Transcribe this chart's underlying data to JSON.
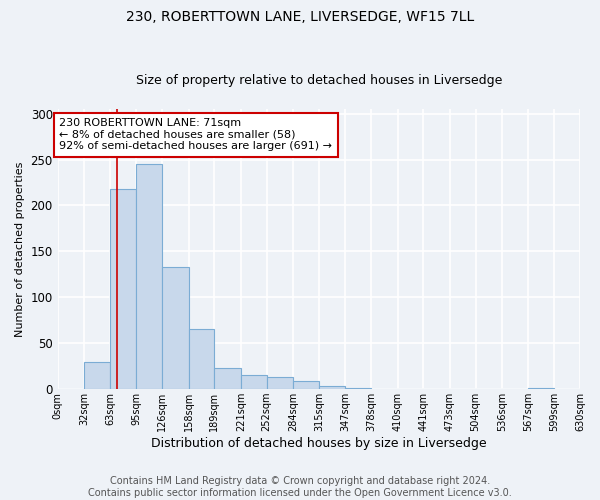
{
  "title": "230, ROBERTTOWN LANE, LIVERSEDGE, WF15 7LL",
  "subtitle": "Size of property relative to detached houses in Liversedge",
  "xlabel": "Distribution of detached houses by size in Liversedge",
  "ylabel": "Number of detached properties",
  "bin_edges": [
    0,
    32,
    63,
    95,
    126,
    158,
    189,
    221,
    252,
    284,
    315,
    347,
    378,
    410,
    441,
    473,
    504,
    536,
    567,
    599,
    630
  ],
  "bar_heights": [
    0,
    30,
    218,
    245,
    133,
    65,
    23,
    15,
    13,
    9,
    3,
    1,
    0,
    0,
    0,
    0,
    0,
    0,
    1,
    0
  ],
  "bar_color": "#c8d8eb",
  "bar_edge_color": "#7bacd4",
  "vline_x": 71,
  "vline_color": "#cc0000",
  "annotation_title": "230 ROBERTTOWN LANE: 71sqm",
  "annotation_line1": "← 8% of detached houses are smaller (58)",
  "annotation_line2": "92% of semi-detached houses are larger (691) →",
  "annotation_box_color": "#ffffff",
  "annotation_box_edge": "#cc0000",
  "ylim": [
    0,
    305
  ],
  "xlim": [
    0,
    630
  ],
  "tick_labels": [
    "0sqm",
    "32sqm",
    "63sqm",
    "95sqm",
    "126sqm",
    "158sqm",
    "189sqm",
    "221sqm",
    "252sqm",
    "284sqm",
    "315sqm",
    "347sqm",
    "378sqm",
    "410sqm",
    "441sqm",
    "473sqm",
    "504sqm",
    "536sqm",
    "567sqm",
    "599sqm",
    "630sqm"
  ],
  "footer_line1": "Contains HM Land Registry data © Crown copyright and database right 2024.",
  "footer_line2": "Contains public sector information licensed under the Open Government Licence v3.0.",
  "background_color": "#eef2f7",
  "plot_background": "#eef2f7",
  "grid_color": "#ffffff",
  "title_fontsize": 10,
  "subtitle_fontsize": 9,
  "footer_fontsize": 7,
  "ylabel_fontsize": 8,
  "xlabel_fontsize": 9,
  "ytick_fontsize": 8.5,
  "xtick_fontsize": 7
}
